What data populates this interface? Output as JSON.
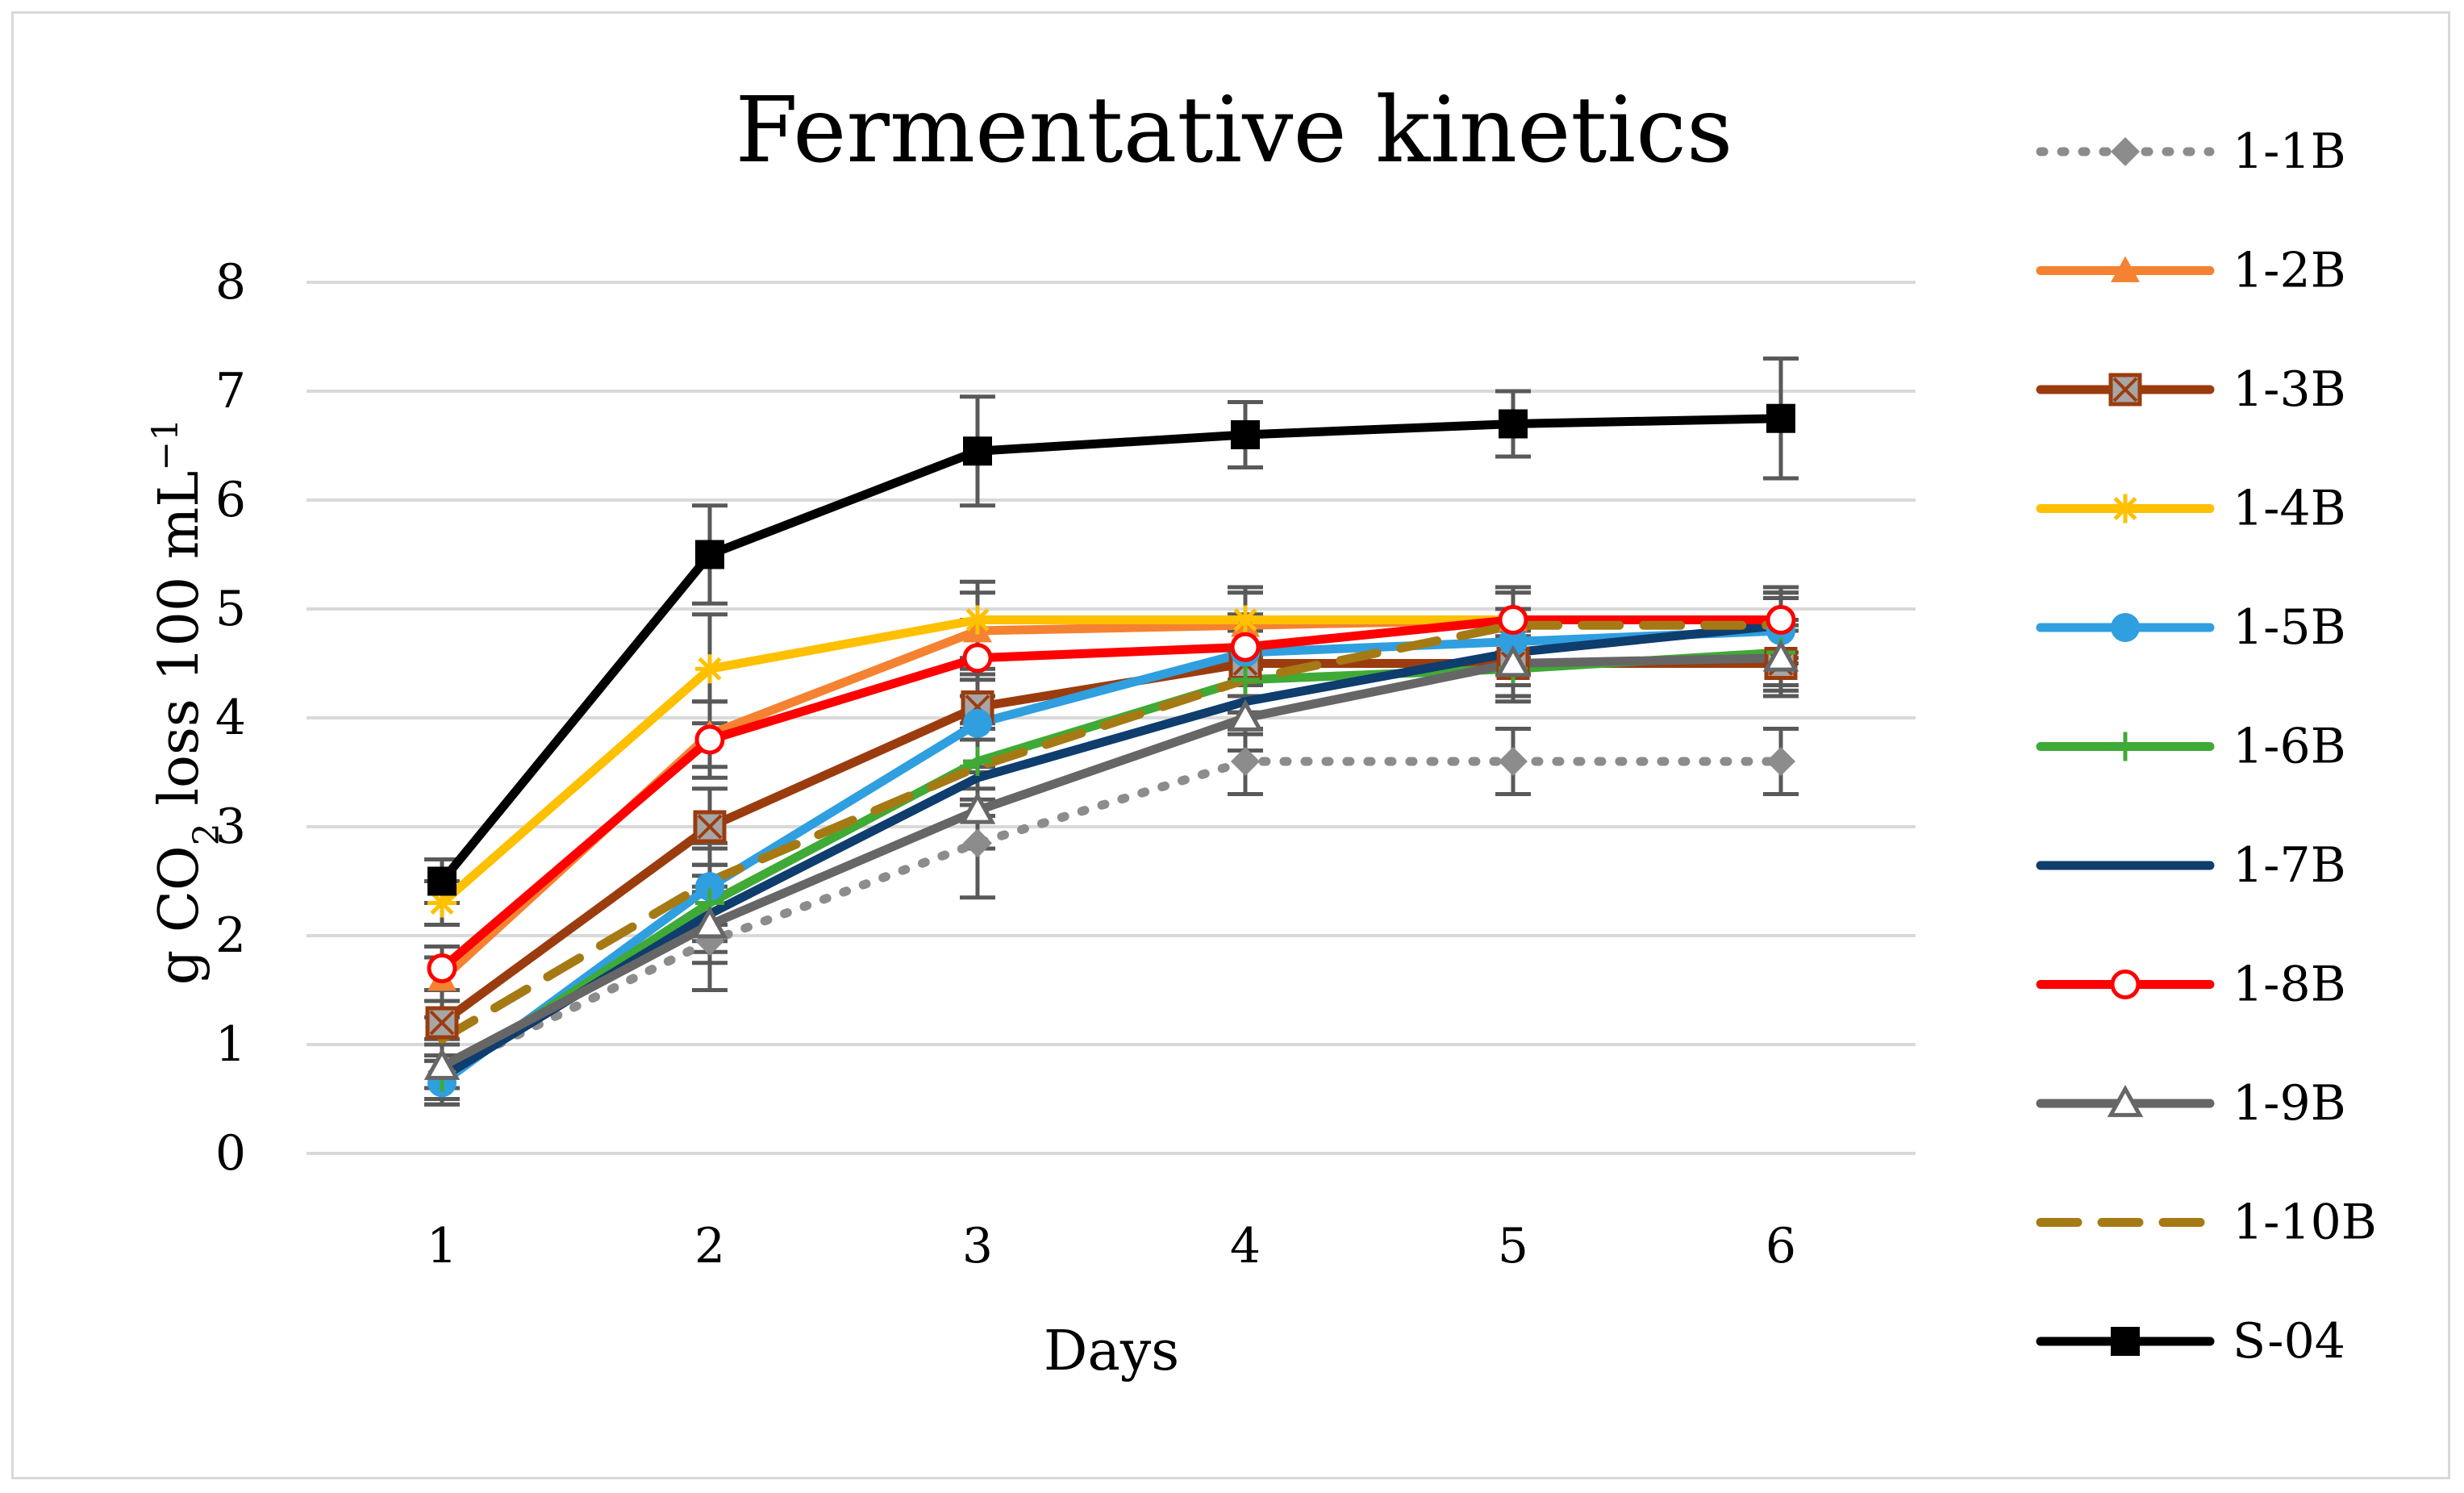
{
  "chart_data": {
    "type": "line",
    "title": "Fermentative kinetics",
    "xlabel": "Days",
    "ylabel": {
      "prefix": "g CO",
      "subscript": "2",
      "suffix": " loss 100 mL",
      "superscript": "−1"
    },
    "x": [
      1,
      2,
      3,
      4,
      5,
      6
    ],
    "x_tick_labels": [
      "1",
      "2",
      "3",
      "4",
      "5",
      "6"
    ],
    "y_tick_labels": [
      "0",
      "1",
      "2",
      "3",
      "4",
      "5",
      "6",
      "7",
      "8"
    ],
    "ylim": [
      0,
      8
    ],
    "grid": "horizontal",
    "legend": "right",
    "series": [
      {
        "name": "1-1B",
        "values": [
          0.75,
          1.95,
          2.85,
          3.6,
          3.6,
          3.6
        ],
        "color": "#8c8c8c",
        "dash": "dotted",
        "marker": "diamond",
        "err": [
          0.3,
          0.45,
          0.5,
          0.3,
          0.3,
          0.3
        ]
      },
      {
        "name": "1-2B",
        "values": [
          1.6,
          3.85,
          4.8,
          4.85,
          4.9,
          4.9
        ],
        "color": "#f58231",
        "dash": "solid",
        "marker": "triangle",
        "err": [
          0.2,
          0.3,
          0.35,
          0.3,
          0.3,
          0.3
        ]
      },
      {
        "name": "1-3B",
        "values": [
          1.2,
          3.0,
          4.1,
          4.5,
          4.5,
          4.5
        ],
        "color": "#9b3c0f",
        "dash": "solid",
        "marker": "xsquare",
        "err": [
          0.2,
          0.35,
          0.3,
          0.3,
          0.3,
          0.3
        ]
      },
      {
        "name": "1-4B",
        "values": [
          2.3,
          4.45,
          4.9,
          4.9,
          4.9,
          4.9
        ],
        "color": "#ffc000",
        "dash": "solid",
        "marker": "asterisk",
        "err": [
          0.2,
          0.5,
          0.35,
          0.3,
          0.3,
          0.3
        ]
      },
      {
        "name": "1-5B",
        "values": [
          0.65,
          2.45,
          3.95,
          4.6,
          4.7,
          4.8
        ],
        "color": "#2f9fe0",
        "dash": "solid",
        "marker": "circle",
        "err": [
          0.2,
          0.35,
          0.4,
          0.3,
          0.3,
          0.3
        ]
      },
      {
        "name": "1-6B",
        "values": [
          0.7,
          2.3,
          3.6,
          4.35,
          4.45,
          4.6
        ],
        "color": "#3faa35",
        "dash": "solid",
        "marker": "plus",
        "err": [
          0.2,
          0.35,
          0.35,
          0.3,
          0.3,
          0.3
        ]
      },
      {
        "name": "1-7B",
        "values": [
          0.7,
          2.2,
          3.45,
          4.15,
          4.6,
          4.85
        ],
        "color": "#0e3d6e",
        "dash": "solid",
        "marker": "none",
        "err": [
          0.2,
          0.35,
          0.35,
          0.3,
          0.3,
          0.3
        ]
      },
      {
        "name": "1-8B",
        "values": [
          1.7,
          3.8,
          4.55,
          4.65,
          4.9,
          4.9
        ],
        "color": "#ff0000",
        "dash": "solid",
        "marker": "ocircle",
        "err": [
          0.2,
          0.35,
          0.35,
          0.3,
          0.3,
          0.3
        ]
      },
      {
        "name": "1-9B",
        "values": [
          0.8,
          2.1,
          3.15,
          4.0,
          4.5,
          4.55
        ],
        "color": "#666666",
        "dash": "solid",
        "marker": "otriangle",
        "err": [
          0.2,
          0.35,
          0.35,
          0.3,
          0.3,
          0.3
        ]
      },
      {
        "name": "1-10B",
        "values": [
          1.05,
          2.5,
          3.55,
          4.35,
          4.85,
          4.85
        ],
        "color": "#a57a14",
        "dash": "dashed",
        "marker": "none",
        "err": [
          0.2,
          0.35,
          0.35,
          0.3,
          0.3,
          0.3
        ]
      },
      {
        "name": "S-04",
        "values": [
          2.5,
          5.5,
          6.45,
          6.6,
          6.7,
          6.75
        ],
        "color": "#000000",
        "dash": "solid",
        "marker": "square",
        "err": [
          0.2,
          0.45,
          0.5,
          0.3,
          0.3,
          0.55
        ]
      }
    ]
  }
}
